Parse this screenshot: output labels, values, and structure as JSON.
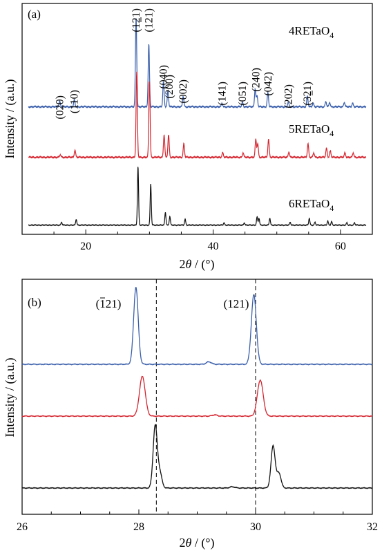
{
  "chart_data": [
    {
      "panel_label": "(a)",
      "type": "line",
      "xlabel_pre": "2",
      "xlabel_var": "θ",
      "xlabel_post": " / (°)",
      "ylabel": "Intensity / (a.u.)",
      "xlim": [
        10,
        65
      ],
      "xticks": [
        20,
        40,
        60
      ],
      "axis_color": "#000000",
      "background": "#ffffff",
      "series": [
        {
          "name": "4RETaO",
          "subscript": "4",
          "color": "#3a5fab",
          "baseline": 0.1,
          "scale": 0.58,
          "width": 0.32,
          "peaks": [
            [
              15.9,
              0.06
            ],
            [
              18.2,
              0.08
            ],
            [
              27.9,
              1.0
            ],
            [
              29.9,
              0.7
            ],
            [
              32.2,
              0.28
            ],
            [
              32.9,
              0.18
            ],
            [
              35.3,
              0.12
            ],
            [
              41.4,
              0.04
            ],
            [
              44.6,
              0.05
            ],
            [
              46.6,
              0.2
            ],
            [
              46.9,
              0.12
            ],
            [
              48.6,
              0.16
            ],
            [
              51.8,
              0.05
            ],
            [
              54.8,
              0.12
            ],
            [
              55.7,
              0.04
            ],
            [
              57.7,
              0.06
            ],
            [
              58.3,
              0.05
            ],
            [
              60.6,
              0.05
            ],
            [
              61.9,
              0.04
            ]
          ]
        },
        {
          "name": "5RETaO",
          "subscript": "4",
          "color": "#d4242e",
          "baseline": 0.1,
          "scale": 0.58,
          "width": 0.32,
          "peaks": [
            [
              16.0,
              0.03
            ],
            [
              18.3,
              0.08
            ],
            [
              28.0,
              0.95
            ],
            [
              30.0,
              0.85
            ],
            [
              32.3,
              0.25
            ],
            [
              33.0,
              0.25
            ],
            [
              35.4,
              0.15
            ],
            [
              41.5,
              0.05
            ],
            [
              44.7,
              0.05
            ],
            [
              46.7,
              0.2
            ],
            [
              47.0,
              0.15
            ],
            [
              48.7,
              0.2
            ],
            [
              51.9,
              0.06
            ],
            [
              54.9,
              0.15
            ],
            [
              55.8,
              0.05
            ],
            [
              57.8,
              0.1
            ],
            [
              58.4,
              0.07
            ],
            [
              60.7,
              0.05
            ],
            [
              62.0,
              0.05
            ]
          ]
        },
        {
          "name": "6RETaO",
          "subscript": "4",
          "color": "#111111",
          "baseline": 0.0,
          "scale": 0.82,
          "width": 0.28,
          "peaks": [
            [
              16.2,
              0.05
            ],
            [
              18.5,
              0.1
            ],
            [
              28.2,
              1.0
            ],
            [
              30.2,
              0.7
            ],
            [
              32.5,
              0.22
            ],
            [
              33.2,
              0.15
            ],
            [
              35.6,
              0.1
            ],
            [
              41.7,
              0.04
            ],
            [
              44.9,
              0.04
            ],
            [
              46.9,
              0.14
            ],
            [
              47.2,
              0.12
            ],
            [
              48.9,
              0.12
            ],
            [
              52.1,
              0.05
            ],
            [
              55.1,
              0.12
            ],
            [
              56.0,
              0.05
            ],
            [
              58.0,
              0.07
            ],
            [
              58.6,
              0.06
            ],
            [
              61.0,
              0.04
            ],
            [
              62.2,
              0.04
            ]
          ]
        }
      ],
      "annotations": [
        {
          "text": "(020)",
          "x": 15.9,
          "bar": false
        },
        {
          "text": "(110)",
          "x": 18.2,
          "bar": false
        },
        {
          "text": "(121)",
          "x": 27.9,
          "bar": true
        },
        {
          "text": "(121)",
          "x": 29.9,
          "bar": false
        },
        {
          "text": "(040)",
          "x": 32.2,
          "bar": false
        },
        {
          "text": "(200)",
          "x": 33.1,
          "bar": false
        },
        {
          "text": "(002)",
          "x": 35.3,
          "bar": false
        },
        {
          "text": "(141)",
          "x": 41.4,
          "bar": false
        },
        {
          "text": "(051)",
          "x": 44.6,
          "bar": false
        },
        {
          "text": "(240)",
          "x": 46.7,
          "bar": false
        },
        {
          "text": "(042)",
          "x": 48.6,
          "bar": false
        },
        {
          "text": "(202)",
          "x": 51.8,
          "bar": false
        },
        {
          "text": "(321)",
          "x": 54.8,
          "bar": true
        }
      ]
    },
    {
      "panel_label": "(b)",
      "type": "line",
      "xlabel_pre": "2",
      "xlabel_var": "θ",
      "xlabel_post": " / (°)",
      "ylabel": "Intensity / (a.u.)",
      "xlim": [
        26,
        32
      ],
      "xticks": [
        26,
        28,
        30,
        32
      ],
      "reference_lines_x": [
        28.3,
        30.0
      ],
      "series": [
        {
          "color": "#3a5fab",
          "offset": 0.62,
          "peaks": [
            [
              27.95,
              0.62,
              0.055
            ],
            [
              29.97,
              0.56,
              0.06
            ],
            [
              29.2,
              0.02,
              0.06
            ]
          ]
        },
        {
          "color": "#d4242e",
          "offset": 0.31,
          "peaks": [
            [
              28.06,
              0.32,
              0.07
            ],
            [
              30.08,
              0.29,
              0.07
            ],
            [
              29.3,
              0.01,
              0.06
            ]
          ]
        },
        {
          "color": "#111111",
          "offset": 0.0,
          "peaks": [
            [
              28.28,
              0.5,
              0.05
            ],
            [
              28.36,
              0.12,
              0.05
            ],
            [
              30.3,
              0.34,
              0.05
            ],
            [
              30.4,
              0.12,
              0.05
            ],
            [
              29.6,
              0.01,
              0.06
            ]
          ]
        }
      ],
      "annotations": [
        {
          "text": "(121)",
          "x": 27.95,
          "bar": true
        },
        {
          "text": "(121)",
          "x": 29.97,
          "bar": false
        }
      ]
    }
  ]
}
